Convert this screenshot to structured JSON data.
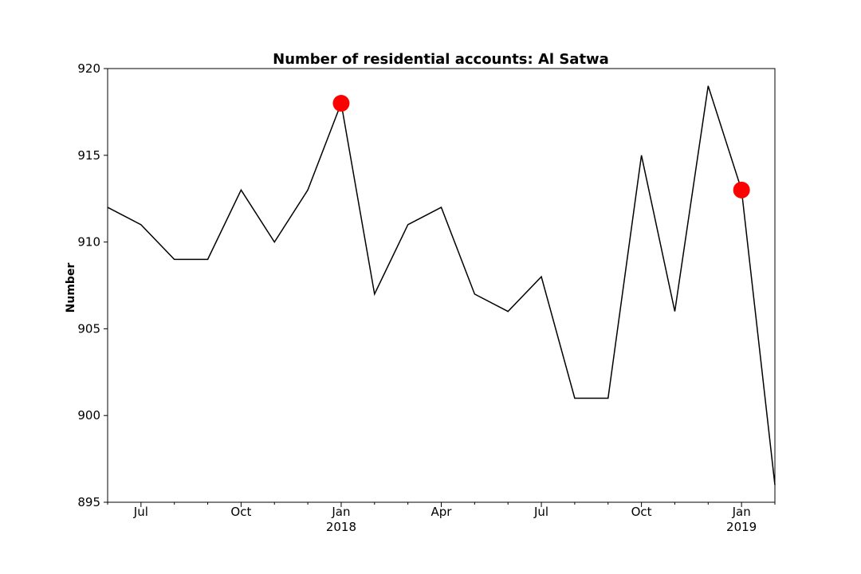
{
  "chart_data": {
    "type": "line",
    "title": "Number of residential accounts: Al Satwa",
    "xlabel": "",
    "ylabel": "Number",
    "ylim": [
      895,
      920
    ],
    "xlim": [
      "2017-06",
      "2019-02"
    ],
    "grid": false,
    "x": [
      "2017-06",
      "2017-07",
      "2017-08",
      "2017-09",
      "2017-10",
      "2017-11",
      "2017-12",
      "2018-01",
      "2018-02",
      "2018-03",
      "2018-04",
      "2018-05",
      "2018-06",
      "2018-07",
      "2018-08",
      "2018-09",
      "2018-10",
      "2018-11",
      "2018-12",
      "2019-01",
      "2019-02"
    ],
    "series": [
      {
        "values": [
          912,
          911,
          909,
          909,
          913,
          910,
          913,
          918,
          907,
          911,
          912,
          907,
          906,
          908,
          901,
          901,
          915,
          906,
          919,
          913,
          896
        ],
        "color": "#000000"
      }
    ],
    "highlights": [
      {
        "x": "2018-01",
        "y": 918,
        "color": "#ff0000"
      },
      {
        "x": "2019-01",
        "y": 913,
        "color": "#ff0000"
      }
    ],
    "y_ticks": [
      "895",
      "900",
      "905",
      "910",
      "915",
      "920"
    ],
    "x_ticks": [
      {
        "x": "2017-07",
        "label": "Jul",
        "sublabel": ""
      },
      {
        "x": "2017-10",
        "label": "Oct",
        "sublabel": ""
      },
      {
        "x": "2018-01",
        "label": "Jan",
        "sublabel": "2018"
      },
      {
        "x": "2018-04",
        "label": "Apr",
        "sublabel": ""
      },
      {
        "x": "2018-07",
        "label": "Jul",
        "sublabel": ""
      },
      {
        "x": "2018-10",
        "label": "Oct",
        "sublabel": ""
      },
      {
        "x": "2019-01",
        "label": "Jan",
        "sublabel": "2019"
      }
    ]
  }
}
